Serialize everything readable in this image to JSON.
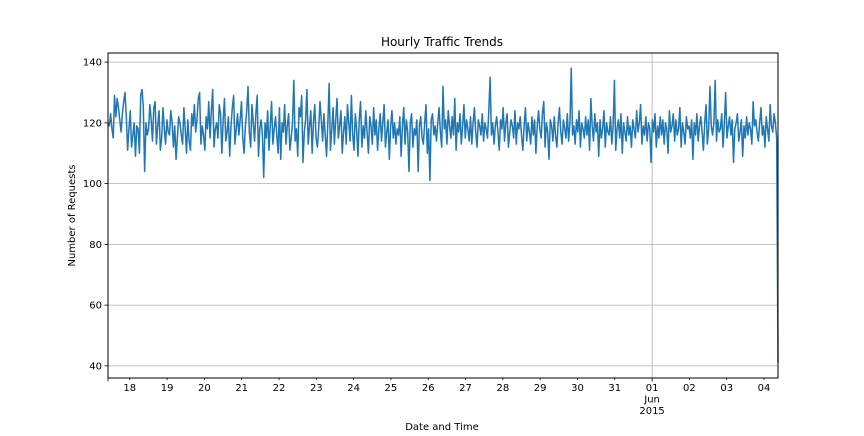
{
  "chart_data": {
    "type": "line",
    "title": "Hourly Traffic Trends",
    "xlabel": "Date and Time",
    "ylabel": "Number of Requests",
    "xlim": [
      "2015-05-17 10:00",
      "2015-06-04 09:00"
    ],
    "ylim": [
      36,
      143
    ],
    "grid": true,
    "legend": "none",
    "line_color": "#1f77b4",
    "x_tick_labels": [
      {
        "at": "2015-05-18",
        "label": "18"
      },
      {
        "at": "2015-05-19",
        "label": "19"
      },
      {
        "at": "2015-05-20",
        "label": "20"
      },
      {
        "at": "2015-05-21",
        "label": "21"
      },
      {
        "at": "2015-05-22",
        "label": "22"
      },
      {
        "at": "2015-05-23",
        "label": "23"
      },
      {
        "at": "2015-05-24",
        "label": "24"
      },
      {
        "at": "2015-05-25",
        "label": "25"
      },
      {
        "at": "2015-05-26",
        "label": "26"
      },
      {
        "at": "2015-05-27",
        "label": "27"
      },
      {
        "at": "2015-05-28",
        "label": "28"
      },
      {
        "at": "2015-05-29",
        "label": "29"
      },
      {
        "at": "2015-05-30",
        "label": "30"
      },
      {
        "at": "2015-05-31",
        "label": "31"
      },
      {
        "at": "2015-06-01",
        "label": "01\nJun\n2015"
      },
      {
        "at": "2015-06-02",
        "label": "02"
      },
      {
        "at": "2015-06-03",
        "label": "03"
      },
      {
        "at": "2015-06-04",
        "label": "04"
      }
    ],
    "y_ticks": [
      40,
      60,
      80,
      100,
      120,
      140
    ],
    "series": [
      {
        "x_start": "2015-05-17 10:00",
        "x_step": "1 hour",
        "values": [
          120,
          119,
          123,
          118,
          115,
          129,
          122,
          128,
          125,
          121,
          117,
          123,
          127,
          130,
          122,
          111,
          118,
          124,
          112,
          116,
          120,
          109,
          119,
          118,
          110,
          129,
          131,
          125,
          104,
          120,
          116,
          118,
          126,
          121,
          114,
          125,
          127,
          113,
          119,
          124,
          111,
          115,
          125,
          118,
          113,
          121,
          117,
          116,
          124,
          120,
          112,
          119,
          108,
          115,
          122,
          120,
          116,
          113,
          125,
          118,
          110,
          121,
          114,
          111,
          123,
          119,
          126,
          117,
          121,
          128,
          130,
          113,
          119,
          116,
          111,
          122,
          118,
          127,
          115,
          124,
          131,
          112,
          118,
          120,
          115,
          126,
          123,
          110,
          121,
          128,
          114,
          117,
          122,
          109,
          119,
          125,
          129,
          113,
          118,
          123,
          116,
          121,
          127,
          115,
          110,
          119,
          124,
          132,
          117,
          112,
          126,
          120,
          114,
          123,
          129,
          109,
          118,
          121,
          116,
          102,
          120,
          115,
          124,
          111,
          119,
          127,
          113,
          118,
          122,
          116,
          110,
          125,
          108,
          120,
          117,
          126,
          113,
          119,
          123,
          111,
          115,
          120,
          134,
          114,
          118,
          109,
          125,
          122,
          129,
          107,
          117,
          121,
          131,
          113,
          119,
          124,
          110,
          120,
          126,
          115,
          112,
          118,
          127,
          121,
          114,
          123,
          116,
          109,
          120,
          133,
          111,
          118,
          125,
          113,
          121,
          128,
          115,
          119,
          124,
          110,
          117,
          122,
          113,
          126,
          120,
          114,
          129,
          116,
          111,
          123,
          118,
          109,
          121,
          127,
          112,
          119,
          115,
          124,
          117,
          110,
          122,
          119,
          113,
          125,
          116,
          121,
          111,
          118,
          123,
          114,
          120,
          126,
          112,
          117,
          121,
          108,
          119,
          124,
          115,
          120,
          113,
          118,
          116,
          122,
          109,
          119,
          125,
          113,
          121,
          117,
          104,
          120,
          123,
          112,
          118,
          116,
          121,
          104,
          119,
          122,
          115,
          113,
          120,
          126,
          110,
          118,
          101,
          121,
          123,
          116,
          119,
          114,
          120,
          125,
          117,
          112,
          132,
          118,
          121,
          113,
          124,
          119,
          115,
          122,
          116,
          128,
          111,
          120,
          117,
          123,
          113,
          119,
          126,
          115,
          121,
          118,
          114,
          122,
          113,
          120,
          125,
          117,
          112,
          121,
          119,
          116,
          123,
          114,
          120,
          118,
          115,
          124,
          135,
          116,
          120,
          113,
          119,
          122,
          117,
          111,
          121,
          118,
          125,
          114,
          120,
          123,
          112,
          117,
          121,
          119,
          115,
          124,
          113,
          120,
          118,
          122,
          116,
          111,
          119,
          125,
          114,
          120,
          117,
          113,
          122,
          116,
          121,
          110,
          119,
          124,
          118,
          115,
          123,
          127,
          112,
          120,
          117,
          108,
          121,
          119,
          114,
          122,
          116,
          112,
          120,
          125,
          117,
          113,
          121,
          118,
          115,
          123,
          114,
          120,
          138,
          116,
          119,
          113,
          121,
          117,
          124,
          112,
          120,
          118,
          115,
          122,
          116,
          121,
          111,
          128,
          119,
          114,
          123,
          117,
          120,
          109,
          121,
          115,
          118,
          124,
          112,
          120,
          117,
          116,
          122,
          113,
          119,
          134,
          111,
          118,
          121,
          115,
          123,
          110,
          120,
          117,
          114,
          122,
          116,
          119,
          112,
          121,
          118,
          115,
          124,
          117,
          120,
          126,
          113,
          119,
          116,
          122,
          114,
          120,
          118,
          107,
          121,
          117,
          123,
          112,
          119,
          115,
          122,
          116,
          121,
          113,
          120,
          118,
          110,
          124,
          117,
          119,
          123,
          114,
          121,
          116,
          118,
          125,
          112,
          120,
          117,
          113,
          122,
          118,
          119,
          115,
          121,
          108,
          120,
          116,
          123,
          114,
          119,
          122,
          117,
          111,
          120,
          126,
          113,
          118,
          132,
          119,
          116,
          120,
          134,
          114,
          121,
          117,
          118,
          123,
          112,
          120,
          130,
          115,
          119,
          122,
          116,
          121,
          107,
          118,
          120,
          123,
          114,
          117,
          121,
          109,
          119,
          115,
          122,
          116,
          120,
          118,
          113,
          127,
          119,
          121,
          117,
          114,
          120,
          125,
          116,
          119,
          112,
          122,
          118,
          114,
          126,
          119,
          117,
          123,
          120,
          115,
          41
        ]
      }
    ]
  }
}
